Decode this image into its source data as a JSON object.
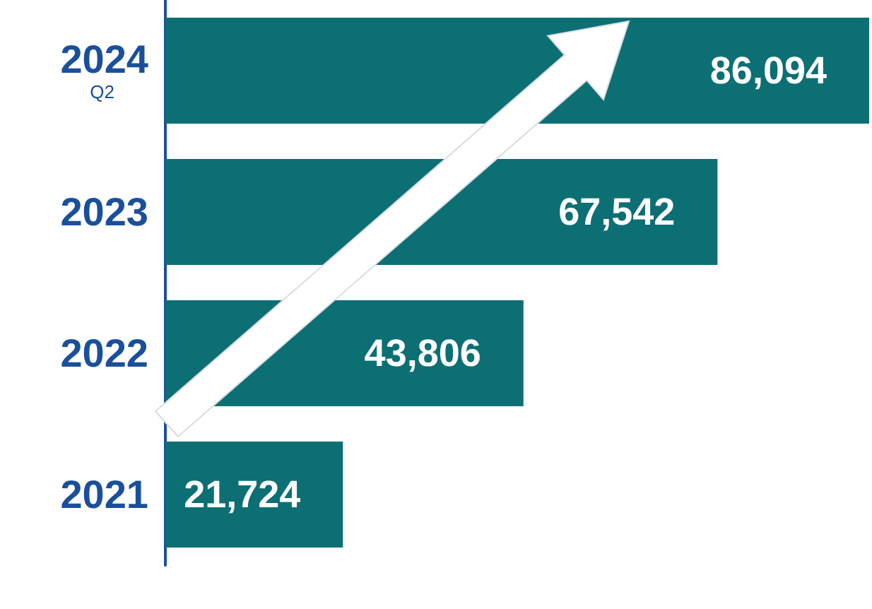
{
  "chart_data": {
    "type": "bar",
    "orientation": "horizontal",
    "categories": [
      "2024\nQ2",
      "2023",
      "2022",
      "2021"
    ],
    "values": [
      86094,
      67542,
      43806,
      21724
    ],
    "value_labels": [
      "86,094",
      "67,542",
      "43,806",
      "21,724"
    ],
    "color": "#0c6f74"
  }
}
